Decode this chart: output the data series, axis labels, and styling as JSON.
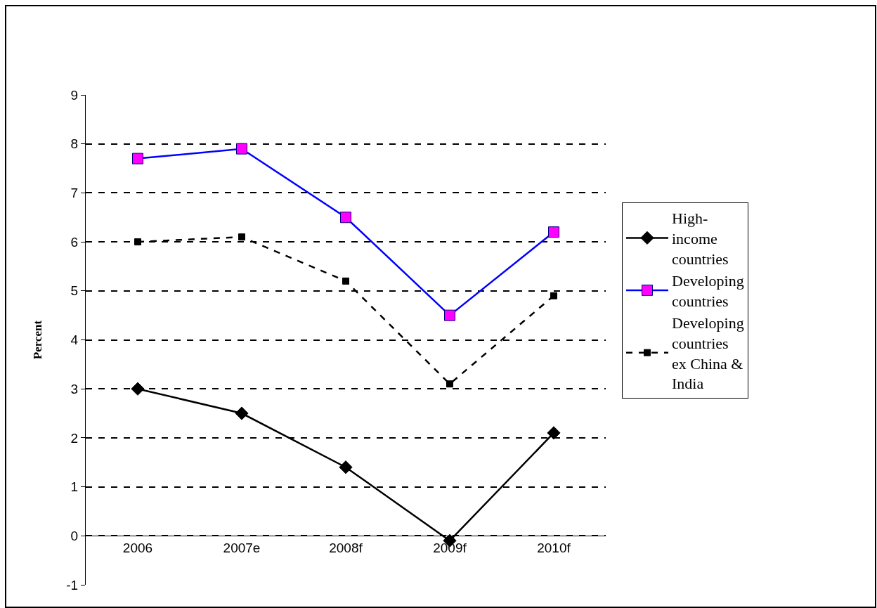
{
  "chart_data": {
    "type": "line",
    "ylabel": "Percent",
    "categories": [
      "2006",
      "2007e",
      "2008f",
      "2009f",
      "2010f"
    ],
    "series": [
      {
        "name": "High-income countries",
        "color": "#000000",
        "marker": "diamond",
        "line_style": "solid",
        "values": [
          3.0,
          2.5,
          1.4,
          -0.1,
          2.1
        ]
      },
      {
        "name": "Developing countries",
        "color": "#0000ff",
        "colors": [
          "#ff00ff",
          "#ff00ff",
          "#ff00ff",
          "#ff00ff",
          "#ff00ff"
        ],
        "marker": "square",
        "line_style": "solid",
        "values": [
          7.7,
          7.9,
          6.5,
          4.5,
          6.2
        ]
      },
      {
        "name": "Developing countries ex China & India",
        "color": "#000000",
        "marker": "square",
        "line_style": "dashed",
        "values": [
          6.0,
          6.1,
          5.2,
          3.1,
          4.9
        ]
      }
    ],
    "ylim": [
      -1,
      9
    ],
    "yticks": [
      -1,
      0,
      1,
      2,
      3,
      4,
      5,
      6,
      7,
      8,
      9
    ],
    "grid": "y",
    "legend": "right"
  }
}
